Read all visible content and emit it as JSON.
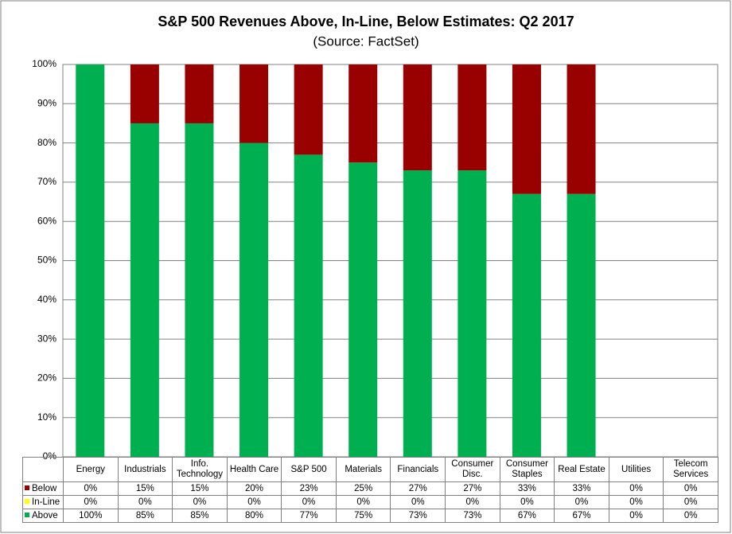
{
  "chart_data": {
    "type": "stacked_bar",
    "title": "S&P 500 Revenues Above, In-Line, Below Estimates: Q2 2017",
    "subtitle": "(Source: FactSet)",
    "categories": [
      "Energy",
      "Industrials",
      "Info. Technology",
      "Health Care",
      "S&P 500",
      "Materials",
      "Financials",
      "Consumer Disc.",
      "Consumer Staples",
      "Real Estate",
      "Utilities",
      "Telecom Services"
    ],
    "series": [
      {
        "name": "Below",
        "color": "#990000",
        "values": [
          0,
          15,
          15,
          20,
          23,
          25,
          27,
          27,
          33,
          33,
          0,
          0
        ],
        "value_labels": [
          "0%",
          "15%",
          "15%",
          "20%",
          "23%",
          "25%",
          "27%",
          "27%",
          "33%",
          "33%",
          "0%",
          "0%"
        ]
      },
      {
        "name": "In-Line",
        "color": "#ffff00",
        "values": [
          0,
          0,
          0,
          0,
          0,
          0,
          0,
          0,
          0,
          0,
          0,
          0
        ],
        "value_labels": [
          "0%",
          "0%",
          "0%",
          "0%",
          "0%",
          "0%",
          "0%",
          "0%",
          "0%",
          "0%",
          "0%",
          "0%"
        ]
      },
      {
        "name": "Above",
        "color": "#00b050",
        "values": [
          100,
          85,
          85,
          80,
          77,
          75,
          73,
          73,
          67,
          67,
          0,
          0
        ],
        "value_labels": [
          "100%",
          "85%",
          "85%",
          "80%",
          "77%",
          "75%",
          "73%",
          "73%",
          "67%",
          "67%",
          "0%",
          "0%"
        ]
      }
    ],
    "ylim": [
      0,
      100
    ],
    "yticks": [
      {
        "value": 0,
        "label": "0%"
      },
      {
        "value": 10,
        "label": "10%"
      },
      {
        "value": 20,
        "label": "20%"
      },
      {
        "value": 30,
        "label": "30%"
      },
      {
        "value": 40,
        "label": "40%"
      },
      {
        "value": 50,
        "label": "50%"
      },
      {
        "value": 60,
        "label": "60%"
      },
      {
        "value": 70,
        "label": "70%"
      },
      {
        "value": 80,
        "label": "80%"
      },
      {
        "value": 90,
        "label": "90%"
      },
      {
        "value": 100,
        "label": "100%"
      }
    ],
    "grid": true
  }
}
